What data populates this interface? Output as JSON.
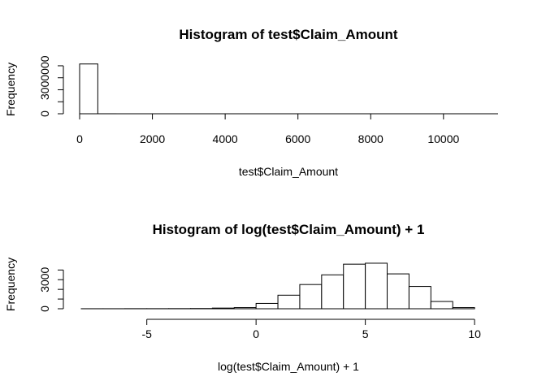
{
  "chart_data": [
    {
      "type": "bar",
      "title": "Histogram of test$Claim_Amount",
      "xlabel": "test$Claim_Amount",
      "ylabel": "Frequency",
      "xticks": [
        0,
        2000,
        4000,
        6000,
        8000,
        10000
      ],
      "yticks": [
        0,
        3000000
      ],
      "xlim": [
        0,
        11500
      ],
      "ylim": [
        0,
        4200000
      ],
      "bins": [
        {
          "x0": 0,
          "x1": 500,
          "count": 4150000
        },
        {
          "x0": 500,
          "x1": 1000,
          "count": 1500
        },
        {
          "x0": 1000,
          "x1": 1500,
          "count": 300
        },
        {
          "x0": 1500,
          "x1": 2000,
          "count": 100
        },
        {
          "x0": 2000,
          "x1": 2500,
          "count": 50
        },
        {
          "x0": 2500,
          "x1": 3000,
          "count": 30
        },
        {
          "x0": 3000,
          "x1": 3500,
          "count": 20
        },
        {
          "x0": 3500,
          "x1": 4000,
          "count": 10
        },
        {
          "x0": 4000,
          "x1": 4500,
          "count": 5
        },
        {
          "x0": 4500,
          "x1": 5000,
          "count": 4
        },
        {
          "x0": 5000,
          "x1": 5500,
          "count": 3
        },
        {
          "x0": 5500,
          "x1": 6000,
          "count": 2
        },
        {
          "x0": 6000,
          "x1": 6500,
          "count": 2
        },
        {
          "x0": 6500,
          "x1": 7000,
          "count": 1
        },
        {
          "x0": 7000,
          "x1": 7500,
          "count": 1
        },
        {
          "x0": 7500,
          "x1": 8000,
          "count": 1
        },
        {
          "x0": 8000,
          "x1": 8500,
          "count": 1
        },
        {
          "x0": 8500,
          "x1": 9000,
          "count": 1
        },
        {
          "x0": 9000,
          "x1": 9500,
          "count": 1
        },
        {
          "x0": 9500,
          "x1": 10000,
          "count": 1
        },
        {
          "x0": 10000,
          "x1": 10500,
          "count": 1
        },
        {
          "x0": 10500,
          "x1": 11000,
          "count": 1
        },
        {
          "x0": 11000,
          "x1": 11500,
          "count": 1
        }
      ]
    },
    {
      "type": "bar",
      "title": "Histogram of log(test$Claim_Amount) + 1",
      "xlabel": "log(test$Claim_Amount) + 1",
      "ylabel": "Frequency",
      "xticks": [
        -5,
        0,
        5,
        10
      ],
      "yticks": [
        0,
        1000,
        2000,
        3000,
        4000
      ],
      "ytick_labels": [
        "0",
        "",
        "",
        "3000",
        ""
      ],
      "xlim": [
        -8,
        11
      ],
      "ylim": [
        0,
        5200
      ],
      "bins": [
        {
          "x0": -8,
          "x1": -7,
          "count": 5
        },
        {
          "x0": -7,
          "x1": -6,
          "count": 5
        },
        {
          "x0": -6,
          "x1": -5,
          "count": 10
        },
        {
          "x0": -5,
          "x1": -4,
          "count": 10
        },
        {
          "x0": -4,
          "x1": -3,
          "count": 15
        },
        {
          "x0": -3,
          "x1": -2,
          "count": 25
        },
        {
          "x0": -2,
          "x1": -1,
          "count": 70
        },
        {
          "x0": -1,
          "x1": 0,
          "count": 120
        },
        {
          "x0": 0,
          "x1": 1,
          "count": 550
        },
        {
          "x0": 1,
          "x1": 2,
          "count": 1400
        },
        {
          "x0": 2,
          "x1": 3,
          "count": 2500
        },
        {
          "x0": 3,
          "x1": 4,
          "count": 3500
        },
        {
          "x0": 4,
          "x1": 5,
          "count": 4600
        },
        {
          "x0": 5,
          "x1": 6,
          "count": 4700
        },
        {
          "x0": 6,
          "x1": 7,
          "count": 3600
        },
        {
          "x0": 7,
          "x1": 8,
          "count": 2300
        },
        {
          "x0": 8,
          "x1": 9,
          "count": 750
        },
        {
          "x0": 9,
          "x1": 10,
          "count": 120
        }
      ]
    }
  ]
}
